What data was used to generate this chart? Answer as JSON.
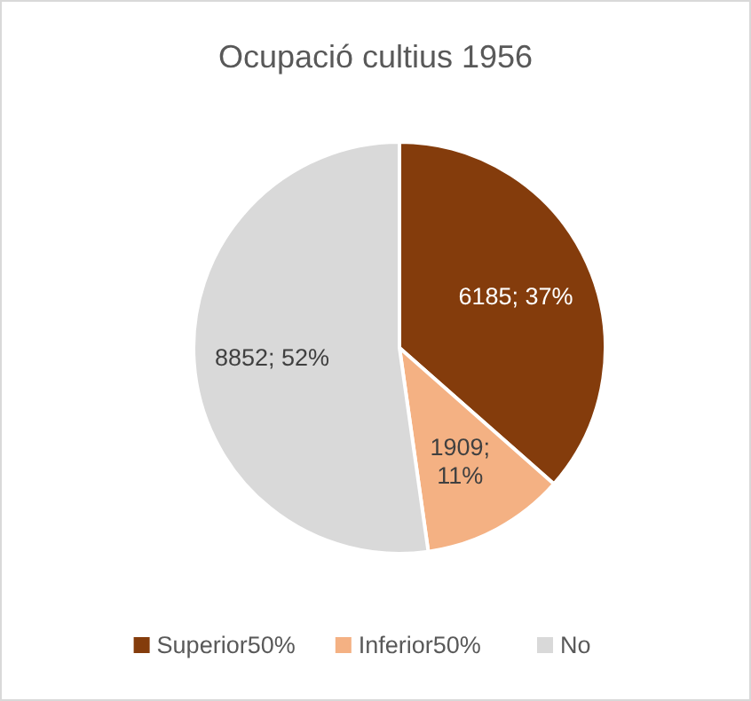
{
  "chart_data": {
    "type": "pie",
    "title": "Ocupació cultius 1956",
    "categories": [
      "Superior50%",
      "Inferior50%",
      "No"
    ],
    "values": [
      6185,
      1909,
      8852
    ],
    "colors": [
      "#843c0c",
      "#f4b183",
      "#d9d9d9"
    ],
    "value_labels": [
      "6185; 37%",
      "1909; 11%",
      "8852; 52%"
    ],
    "legend": "bottom"
  }
}
